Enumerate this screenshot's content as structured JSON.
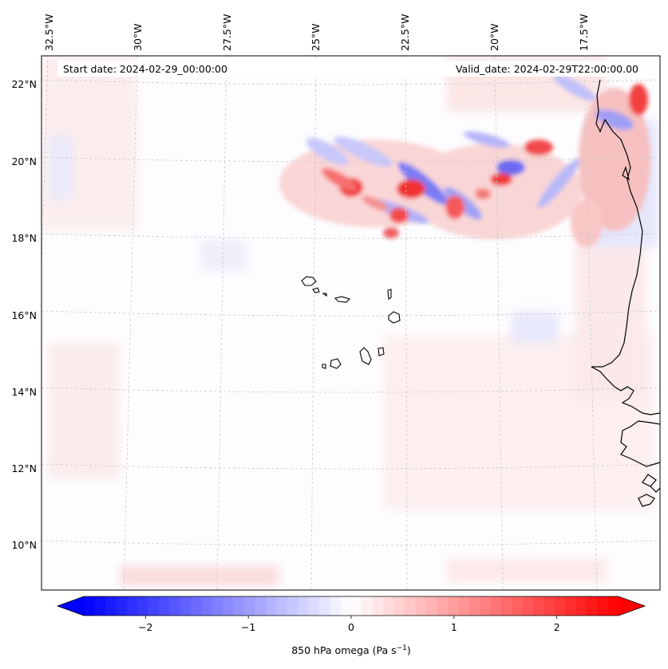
{
  "header": {
    "start_date": "Start date: 2024-02-29_00:00:00",
    "valid_date": "Valid_date: 2024-02-29T22:00:00.00"
  },
  "map": {
    "lon_labels": [
      "32.5°W",
      "30°W",
      "27.5°W",
      "25°W",
      "22.5°W",
      "20°W",
      "17.5°W"
    ],
    "lat_labels": [
      "22°N",
      "20°N",
      "18°N",
      "16°N",
      "14°N",
      "12°N",
      "10°N"
    ],
    "gridlines": true,
    "colors": {
      "coast": "#000000",
      "grid": "#c8c8c8"
    }
  },
  "colorbar": {
    "label_main": "850 hPa omega (Pa s",
    "label_sup": "−1",
    "label_close": ")",
    "ticks": [
      "−2",
      "−1",
      "0",
      "1",
      "2"
    ],
    "range": [
      -2.6,
      2.6
    ],
    "colors": {
      "negative": "#0000ff",
      "zero": "#ffffff",
      "positive": "#ff0000"
    }
  }
}
